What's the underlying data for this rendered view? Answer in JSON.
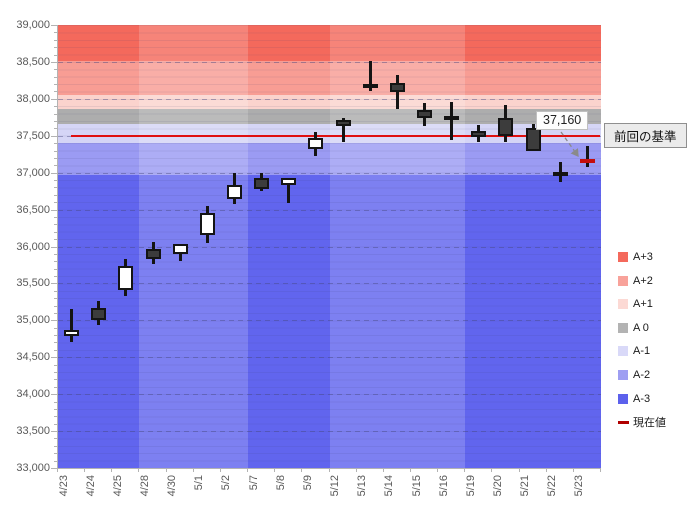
{
  "chart_data": {
    "type": "candlestick",
    "title": "",
    "y_axis": {
      "min": 33000,
      "max": 39000,
      "step": 500,
      "minor_step": 100
    },
    "categories": [
      "4/23",
      "4/24",
      "4/25",
      "4/28",
      "4/30",
      "5/1",
      "5/2",
      "5/7",
      "5/8",
      "5/9",
      "5/12",
      "5/13",
      "5/14",
      "5/15",
      "5/16",
      "5/19",
      "5/20",
      "5/21",
      "5/22",
      "5/23"
    ],
    "ohlc": [
      {
        "date": "4/23",
        "open": 34790,
        "high": 35150,
        "low": 34700,
        "close": 34870,
        "kind": "up"
      },
      {
        "date": "4/24",
        "open": 35170,
        "high": 35260,
        "low": 34940,
        "close": 35000,
        "kind": "down"
      },
      {
        "date": "4/25",
        "open": 35410,
        "high": 35830,
        "low": 35330,
        "close": 35730,
        "kind": "up"
      },
      {
        "date": "4/28",
        "open": 35970,
        "high": 36060,
        "low": 35760,
        "close": 35835,
        "kind": "down"
      },
      {
        "date": "4/30",
        "open": 35900,
        "high": 36040,
        "low": 35800,
        "close": 36030,
        "kind": "up"
      },
      {
        "date": "5/1",
        "open": 36160,
        "high": 36555,
        "low": 36050,
        "close": 36455,
        "kind": "up"
      },
      {
        "date": "5/2",
        "open": 36645,
        "high": 37000,
        "low": 36580,
        "close": 36835,
        "kind": "up"
      },
      {
        "date": "5/7",
        "open": 36925,
        "high": 36995,
        "low": 36750,
        "close": 36780,
        "kind": "down"
      },
      {
        "date": "5/8",
        "open": 36835,
        "high": 36930,
        "low": 36590,
        "close": 36930,
        "kind": "up"
      },
      {
        "date": "5/9",
        "open": 37320,
        "high": 37545,
        "low": 37230,
        "close": 37470,
        "kind": "up"
      },
      {
        "date": "5/12",
        "open": 37715,
        "high": 37740,
        "low": 37410,
        "close": 37635,
        "kind": "down"
      },
      {
        "date": "5/13",
        "open": 38195,
        "high": 38510,
        "low": 38110,
        "close": 38145,
        "kind": "down"
      },
      {
        "date": "5/14",
        "open": 38210,
        "high": 38325,
        "low": 37865,
        "close": 38090,
        "kind": "down"
      },
      {
        "date": "5/15",
        "open": 37850,
        "high": 37940,
        "low": 37635,
        "close": 37740,
        "kind": "down"
      },
      {
        "date": "5/16",
        "open": 37770,
        "high": 37955,
        "low": 37445,
        "close": 37730,
        "kind": "down"
      },
      {
        "date": "5/19",
        "open": 37560,
        "high": 37650,
        "low": 37420,
        "close": 37480,
        "kind": "down"
      },
      {
        "date": "5/20",
        "open": 37740,
        "high": 37920,
        "low": 37415,
        "close": 37490,
        "kind": "down"
      },
      {
        "date": "5/21",
        "open": 37605,
        "high": 37660,
        "low": 37290,
        "close": 37290,
        "kind": "down"
      },
      {
        "date": "5/22",
        "open": 36955,
        "high": 37145,
        "low": 36880,
        "close": 37015,
        "kind": "up"
      },
      {
        "date": "5/23",
        "open": 37160,
        "high": 37355,
        "low": 37075,
        "close": 37160,
        "kind": "current"
      }
    ],
    "bands": [
      {
        "label": "A+3",
        "from": 38510,
        "to": 39000,
        "color": "#f4695c"
      },
      {
        "label": "A+2",
        "from": 38050,
        "to": 38510,
        "color": "#f89d94"
      },
      {
        "label": "A+1",
        "from": 37862,
        "to": 38050,
        "color": "#fbd3cd"
      },
      {
        "label": "A 0",
        "from": 37655,
        "to": 37862,
        "color": "#adadad"
      },
      {
        "label": "A-1",
        "from": 37400,
        "to": 37655,
        "color": "#d5d5f6"
      },
      {
        "label": "A-2",
        "from": 36975,
        "to": 37400,
        "color": "#9b9bf3"
      },
      {
        "label": "A-3",
        "from": 33000,
        "to": 36975,
        "color": "#6165ee"
      }
    ],
    "light_week_columns": [
      [
        3,
        7
      ],
      [
        10,
        15
      ]
    ],
    "baseline": {
      "value": 37500,
      "label": "前回の基準",
      "line_color": "#e01010"
    },
    "current": {
      "value": 37160,
      "label": "37,160",
      "color": "#c40e0e"
    },
    "legend": {
      "items": [
        {
          "label": "A+3",
          "color": "#f4695c",
          "marker": "square"
        },
        {
          "label": "A+2",
          "color": "#f8a29a",
          "marker": "square"
        },
        {
          "label": "A+1",
          "color": "#fcd9d4",
          "marker": "square"
        },
        {
          "label": "A 0",
          "color": "#b3b3b3",
          "marker": "square"
        },
        {
          "label": "A-1",
          "color": "#d9d9f8",
          "marker": "square"
        },
        {
          "label": "A-2",
          "color": "#9e9ef2",
          "marker": "square"
        },
        {
          "label": "A-3",
          "color": "#5c61ec",
          "marker": "square"
        },
        {
          "label": "現在値",
          "color": "#b00000",
          "marker": "dash"
        }
      ]
    }
  }
}
